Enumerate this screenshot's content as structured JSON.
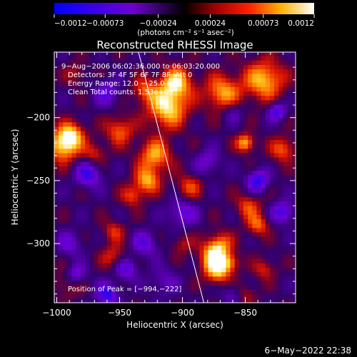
{
  "chart_data": {
    "type": "heatmap",
    "title": "Reconstructed RHESSI Image",
    "xlabel": "Heliocentric X (arcsec)",
    "ylabel": "Heliocentric Y (arcsec)",
    "xlim": [
      -1002,
      -810
    ],
    "ylim": [
      -347,
      -148
    ],
    "xticks": [
      -1000,
      -950,
      -900,
      -850
    ],
    "yticks": [
      -200,
      -250,
      -300
    ],
    "x_tick_labels": [
      "−1000",
      "−950",
      "−900",
      "−850"
    ],
    "y_tick_labels": [
      "−200",
      "−250",
      "−300"
    ],
    "colorbar": {
      "range": [
        -0.0012,
        0.0012
      ],
      "ticks": [
        -0.0012,
        -0.00073,
        -0.00024,
        0.00024,
        0.00073,
        0.0012
      ],
      "tick_labels": [
        "−0.0012",
        "−0.00073",
        "−0.00024",
        "0.00024",
        "0.00073",
        "0.0012"
      ],
      "unit_label": "(photons cm⁻² s⁻¹ asec⁻²)"
    },
    "annotations": [
      "9−Aug−2006 06:02:36.000 to 06:03:20.000",
      "Detectors: 3F 4F 5F 6F 7F 8F, Att 0",
      "Energy Range: 12.0 − 25.0 keV",
      "Clean     Total counts: 1.53e+03"
    ],
    "peak_label": "Position of Peak = [−994,−222]",
    "peak": [
      -994,
      -222
    ],
    "limb_line": [
      [
        -935,
        -148
      ],
      [
        -883,
        -347
      ]
    ],
    "blobs": [
      {
        "x": -995,
        "y": -222,
        "r": 9,
        "v": 0.0011
      },
      {
        "x": -988,
        "y": -213,
        "r": 7,
        "v": 0.0008
      },
      {
        "x": -970,
        "y": -228,
        "r": 6,
        "v": 0.0005
      },
      {
        "x": -950,
        "y": -210,
        "r": 8,
        "v": 0.0007
      },
      {
        "x": -930,
        "y": -178,
        "r": 7,
        "v": 0.0006
      },
      {
        "x": -912,
        "y": -192,
        "r": 11,
        "v": 0.0011
      },
      {
        "x": -905,
        "y": -172,
        "r": 9,
        "v": 0.001
      },
      {
        "x": -922,
        "y": -230,
        "r": 9,
        "v": 0.0009
      },
      {
        "x": -928,
        "y": -250,
        "r": 7,
        "v": 0.0009
      },
      {
        "x": -940,
        "y": -262,
        "r": 6,
        "v": 0.0006
      },
      {
        "x": -955,
        "y": -290,
        "r": 6,
        "v": 0.0005
      },
      {
        "x": -895,
        "y": -255,
        "r": 7,
        "v": 0.0006
      },
      {
        "x": -868,
        "y": -180,
        "r": 10,
        "v": 0.0009
      },
      {
        "x": -835,
        "y": -170,
        "r": 11,
        "v": 0.001
      },
      {
        "x": -820,
        "y": -225,
        "r": 7,
        "v": 0.0007
      },
      {
        "x": -850,
        "y": -220,
        "r": 5,
        "v": 0.001
      },
      {
        "x": -848,
        "y": -270,
        "r": 7,
        "v": 0.0006
      },
      {
        "x": -840,
        "y": -285,
        "r": 6,
        "v": 0.0007
      },
      {
        "x": -870,
        "y": -300,
        "r": 7,
        "v": 0.0006
      },
      {
        "x": -875,
        "y": -310,
        "r": 8,
        "v": 0.001
      },
      {
        "x": -872,
        "y": -322,
        "r": 7,
        "v": 0.0009
      },
      {
        "x": -862,
        "y": -315,
        "r": 5,
        "v": 0.0006
      },
      {
        "x": -990,
        "y": -330,
        "r": 8,
        "v": 0.0005
      },
      {
        "x": -955,
        "y": -310,
        "r": 7,
        "v": 0.0005
      },
      {
        "x": -850,
        "y": -340,
        "r": 6,
        "v": 0.0004
      },
      {
        "x": -835,
        "y": -320,
        "r": 6,
        "v": 0.0005
      },
      {
        "x": -985,
        "y": -165,
        "r": 6,
        "v": 0.0004
      },
      {
        "x": -900,
        "y": -300,
        "r": 6,
        "v": 0.0004
      },
      {
        "x": -975,
        "y": -245,
        "r": 7,
        "v": -0.0008
      },
      {
        "x": -960,
        "y": -180,
        "r": 7,
        "v": -0.0006
      },
      {
        "x": -990,
        "y": -300,
        "r": 7,
        "v": -0.0005
      },
      {
        "x": -985,
        "y": -325,
        "r": 6,
        "v": -0.0008
      },
      {
        "x": -960,
        "y": -340,
        "r": 6,
        "v": -0.0009
      },
      {
        "x": -945,
        "y": -320,
        "r": 6,
        "v": -0.0007
      },
      {
        "x": -900,
        "y": -275,
        "r": 8,
        "v": -0.0006
      },
      {
        "x": -880,
        "y": -235,
        "r": 7,
        "v": -0.0005
      },
      {
        "x": -840,
        "y": -250,
        "r": 6,
        "v": -0.0009
      },
      {
        "x": -820,
        "y": -275,
        "r": 6,
        "v": -0.0008
      },
      {
        "x": -825,
        "y": -195,
        "r": 5,
        "v": -0.0008
      },
      {
        "x": -860,
        "y": -195,
        "r": 6,
        "v": -0.0004
      },
      {
        "x": -930,
        "y": -300,
        "r": 7,
        "v": -0.0006
      },
      {
        "x": -915,
        "y": -330,
        "r": 8,
        "v": -0.0004
      },
      {
        "x": -860,
        "y": -340,
        "r": 6,
        "v": -0.0004
      }
    ]
  },
  "footer": {
    "date": "6−May−2022 22:38"
  }
}
